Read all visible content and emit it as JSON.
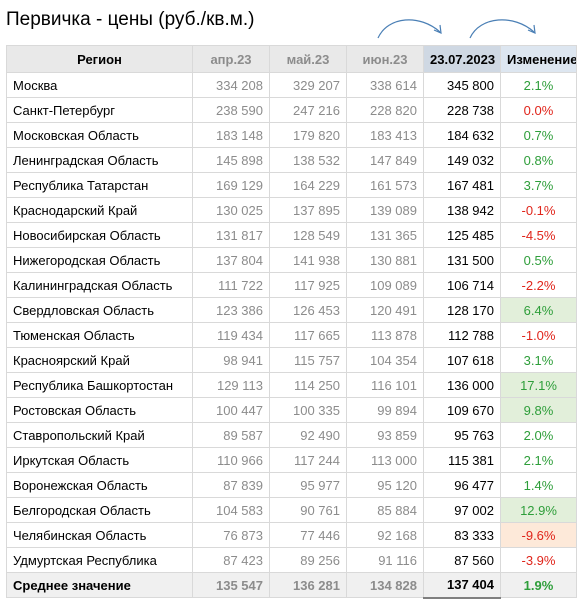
{
  "title": "Первичка - цены (руб./кв.м.)",
  "colors": {
    "positive": "#2e9e3a",
    "negative": "#e0251b",
    "highlight": "#e2efda",
    "highlight_negative": "#fde9d9",
    "arrow": "#4a7fb5"
  },
  "icons": [
    "curved-arrow-icon",
    "curved-arrow-icon"
  ],
  "headers": {
    "region": "Регион",
    "apr": "апр.23",
    "may": "май.23",
    "jun": "июн.23",
    "current": "23.07.2023",
    "change": "Изменение"
  },
  "rows": [
    {
      "region": "Москва",
      "apr": "334 208",
      "may": "329 207",
      "jun": "338 614",
      "current": "345 800",
      "change": "2.1%",
      "sign": "pos",
      "highlight": false
    },
    {
      "region": "Санкт-Петербург",
      "apr": "238 590",
      "may": "247 216",
      "jun": "228 820",
      "current": "228 738",
      "change": "0.0%",
      "sign": "neg",
      "highlight": false
    },
    {
      "region": "Московская Область",
      "apr": "183 148",
      "may": "179 820",
      "jun": "183 413",
      "current": "184 632",
      "change": "0.7%",
      "sign": "pos",
      "highlight": false
    },
    {
      "region": "Ленинградская Область",
      "apr": "145 898",
      "may": "138 532",
      "jun": "147 849",
      "current": "149 032",
      "change": "0.8%",
      "sign": "pos",
      "highlight": false
    },
    {
      "region": "Республика Татарстан",
      "apr": "169 129",
      "may": "164 229",
      "jun": "161 573",
      "current": "167 481",
      "change": "3.7%",
      "sign": "pos",
      "highlight": false
    },
    {
      "region": "Краснодарский Край",
      "apr": "130 025",
      "may": "137 895",
      "jun": "139 089",
      "current": "138 942",
      "change": "-0.1%",
      "sign": "neg",
      "highlight": false
    },
    {
      "region": "Новосибирская Область",
      "apr": "131 817",
      "may": "128 549",
      "jun": "131 365",
      "current": "125 485",
      "change": "-4.5%",
      "sign": "neg",
      "highlight": false
    },
    {
      "region": "Нижегородская Область",
      "apr": "137 804",
      "may": "141 938",
      "jun": "130 881",
      "current": "131 500",
      "change": "0.5%",
      "sign": "pos",
      "highlight": false
    },
    {
      "region": "Калининградская Область",
      "apr": "111 722",
      "may": "117 925",
      "jun": "109 089",
      "current": "106 714",
      "change": "-2.2%",
      "sign": "neg",
      "highlight": false
    },
    {
      "region": "Свердловская Область",
      "apr": "123 386",
      "may": "126 453",
      "jun": "120 491",
      "current": "128 170",
      "change": "6.4%",
      "sign": "pos",
      "highlight": true
    },
    {
      "region": "Тюменская Область",
      "apr": "119 434",
      "may": "117 665",
      "jun": "113 878",
      "current": "112 788",
      "change": "-1.0%",
      "sign": "neg",
      "highlight": false
    },
    {
      "region": "Красноярский Край",
      "apr": "98 941",
      "may": "115 757",
      "jun": "104 354",
      "current": "107 618",
      "change": "3.1%",
      "sign": "pos",
      "highlight": false
    },
    {
      "region": "Республика Башкортостан",
      "apr": "129 113",
      "may": "114 250",
      "jun": "116 101",
      "current": "136 000",
      "change": "17.1%",
      "sign": "pos",
      "highlight": true
    },
    {
      "region": "Ростовская Область",
      "apr": "100 447",
      "may": "100 335",
      "jun": "99 894",
      "current": "109 670",
      "change": "9.8%",
      "sign": "pos",
      "highlight": true
    },
    {
      "region": "Ставропольский Край",
      "apr": "89 587",
      "may": "92 490",
      "jun": "93 859",
      "current": "95 763",
      "change": "2.0%",
      "sign": "pos",
      "highlight": false
    },
    {
      "region": "Иркутская Область",
      "apr": "110 966",
      "may": "117 244",
      "jun": "113 000",
      "current": "115 381",
      "change": "2.1%",
      "sign": "pos",
      "highlight": false
    },
    {
      "region": "Воронежская Область",
      "apr": "87 839",
      "may": "95 977",
      "jun": "95 120",
      "current": "96 477",
      "change": "1.4%",
      "sign": "pos",
      "highlight": false
    },
    {
      "region": "Белгородская Область",
      "apr": "104 583",
      "may": "90 761",
      "jun": "85 884",
      "current": "97 002",
      "change": "12.9%",
      "sign": "pos",
      "highlight": true
    },
    {
      "region": "Челябинская Область",
      "apr": "76 873",
      "may": "77 446",
      "jun": "92 168",
      "current": "83 333",
      "change": "-9.6%",
      "sign": "neg",
      "highlight": true
    },
    {
      "region": "Удмуртская Республика",
      "apr": "87 423",
      "may": "89 256",
      "jun": "91 116",
      "current": "87 560",
      "change": "-3.9%",
      "sign": "neg",
      "highlight": false
    }
  ],
  "average": {
    "label": "Среднее значение",
    "apr": "135 547",
    "may": "136 281",
    "jun": "134 828",
    "current": "137 404",
    "change": "1.9%"
  }
}
